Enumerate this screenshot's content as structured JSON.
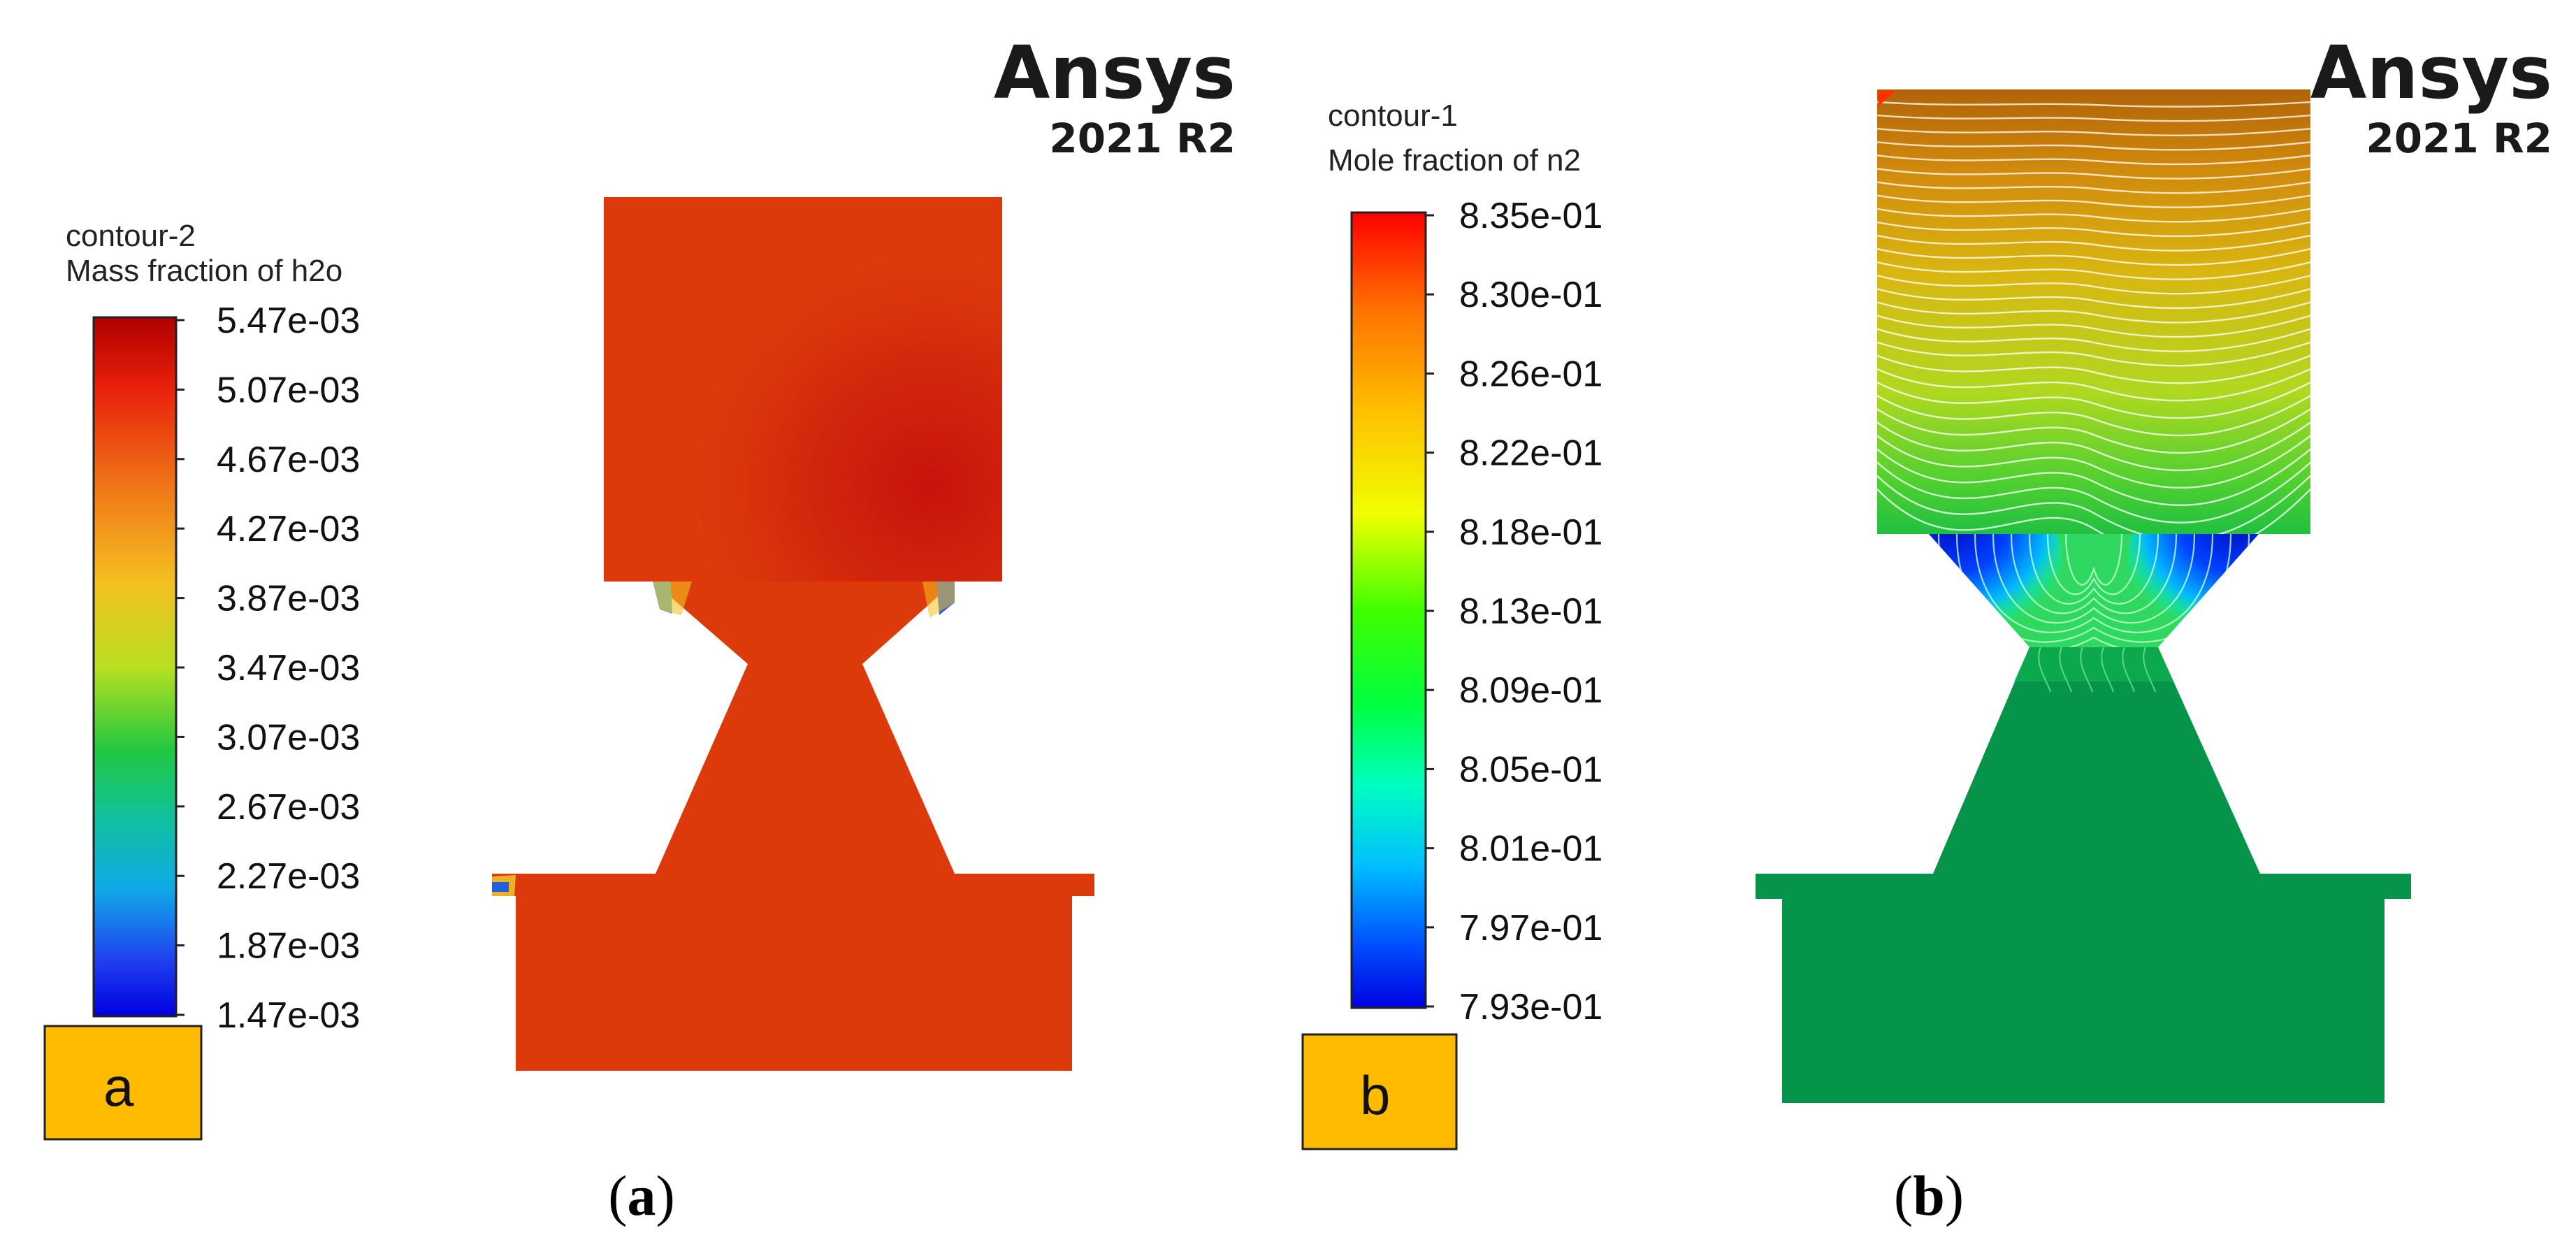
{
  "panel_a": {
    "brand": "Ansys",
    "version": "2021 R2",
    "legend_title": "contour-2",
    "legend_subtitle": "Mass fraction of h2o",
    "scale_labels": [
      "5.47e-03",
      "5.07e-03",
      "4.67e-03",
      "4.27e-03",
      "3.87e-03",
      "3.47e-03",
      "3.07e-03",
      "2.67e-03",
      "2.27e-03",
      "1.87e-03",
      "1.47e-03"
    ],
    "tag": "a",
    "caption_open": "(",
    "caption_letter": "a",
    "caption_close": ")",
    "field_color": "#dd3a0c",
    "high_color": "#c8120c"
  },
  "panel_b": {
    "brand": "Ansys",
    "version": "2021 R2",
    "legend_title": "contour-1",
    "legend_subtitle": "Mole fraction of n2",
    "scale_labels": [
      "8.35e-01",
      "8.30e-01",
      "8.26e-01",
      "8.22e-01",
      "8.18e-01",
      "8.13e-01",
      "8.09e-01",
      "8.05e-01",
      "8.01e-01",
      "7.97e-01",
      "7.93e-01"
    ],
    "tag": "b",
    "caption_open": "(",
    "caption_letter": "b",
    "caption_close": ")",
    "field_color": "#05944a"
  },
  "colormap": [
    "#ff0000",
    "#ff6a00",
    "#ffbf00",
    "#ffff00",
    "#80ff00",
    "#00ff00",
    "#00ff80",
    "#00ffff",
    "#0080ff",
    "#0000ff"
  ],
  "tag_color": "#ffbb00"
}
